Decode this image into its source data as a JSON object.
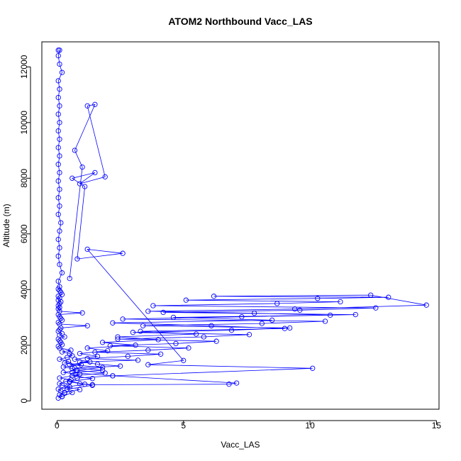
{
  "chart_data": {
    "type": "scatter",
    "title": "ATOM2 Northbound Vacc_LAS",
    "xlabel": "Vacc_LAS",
    "ylabel": "Altitude (m)",
    "xlim": [
      -0.6,
      15.1
    ],
    "ylim": [
      -300,
      12900
    ],
    "xticks": [
      0,
      5,
      10,
      15
    ],
    "xtick_labels": [
      "0",
      "5",
      "10",
      "15"
    ],
    "yticks": [
      0,
      2000,
      4000,
      6000,
      8000,
      10000,
      12000
    ],
    "ytick_labels": [
      "0",
      "2000",
      "4000",
      "6000",
      "8000",
      "10000",
      "12000"
    ],
    "grid": false,
    "legend": "none",
    "marker": "open-circle",
    "connected": true,
    "series_color": "#0000ff",
    "series": [
      {
        "x": [
          0.05,
          0.2,
          0.1,
          0.3,
          0.15,
          0.05,
          0.5,
          0.2,
          0.1,
          0.35,
          0.55,
          0.1,
          0.6,
          0.9,
          0.25,
          0.75,
          0.6,
          0.25,
          0.95,
          0.3,
          0.45,
          0.1,
          0.4,
          0.6,
          0.5,
          0.2,
          0.55,
          0.1,
          0.05,
          0.2,
          0.15,
          0.1,
          0.05,
          0.3,
          0.1,
          0.2,
          0.05,
          0.1,
          0.15,
          1.2,
          0.1,
          0.05,
          0.2,
          0.15,
          0.1,
          0.05,
          1.0,
          0.1,
          0.05,
          0.1,
          0.05,
          0.1,
          0.15,
          0.05,
          0.1,
          0.05,
          0.2,
          0.15,
          0.1,
          0.05,
          0.1,
          0.05,
          0.2,
          0.1,
          0.05,
          0.1,
          0.05,
          0.1,
          0.15,
          0.05,
          0.1,
          0.05,
          0.1,
          0.05,
          0.1,
          0.05,
          0.1,
          0.05,
          0.1,
          0.05,
          0.1,
          0.05,
          0.1,
          0.05,
          0.1,
          0.05,
          0.2,
          0.1,
          0.05,
          0.1,
          0.05
        ],
        "y": [
          100,
          160,
          220,
          280,
          350,
          420,
          500,
          560,
          620,
          700,
          760,
          820,
          900,
          960,
          1020,
          1100,
          1160,
          1220,
          1300,
          1360,
          1420,
          1500,
          1560,
          1620,
          1700,
          1760,
          1820,
          1900,
          1960,
          2020,
          2100,
          2160,
          2220,
          2300,
          2360,
          2420,
          2500,
          2560,
          2620,
          2700,
          2760,
          2820,
          2900,
          2960,
          3020,
          3100,
          3160,
          3220,
          3300,
          3360,
          3420,
          3500,
          3560,
          3620,
          3700,
          3760,
          3820,
          3900,
          3960,
          4020,
          4100,
          4300,
          4600,
          4900,
          5200,
          5500,
          5800,
          6100,
          6400,
          6700,
          7000,
          7300,
          7600,
          7900,
          8200,
          8500,
          8800,
          9100,
          9400,
          9700,
          10000,
          10300,
          10600,
          10900,
          11200,
          11500,
          11800,
          12100,
          12400,
          12600,
          12600
        ]
      },
      {
        "x": [
          0.2,
          0.6,
          0.4,
          1.4,
          0.5,
          0.8,
          2.2,
          0.6,
          1.8,
          0.7,
          2.5,
          1.6,
          0.9,
          3.2,
          1.2,
          2.8,
          4.1,
          1.5,
          3.6,
          5.2,
          2.1,
          4.7,
          6.3,
          2.4,
          5.8,
          7.6,
          3.0,
          6.9,
          9.2,
          3.4,
          8.1,
          10.6,
          2.6,
          7.3,
          11.8,
          4.2,
          9.6,
          12.6,
          3.8,
          8.7,
          11.2,
          5.1,
          10.3,
          13.1,
          6.2,
          12.4,
          14.6,
          9.4,
          3.6,
          7.8,
          10.8,
          4.6,
          8.5,
          2.2,
          6.1,
          9.0,
          3.3,
          5.5,
          2.4,
          4.0,
          1.8,
          3.1,
          1.2,
          2.0,
          0.9,
          1.6,
          0.7,
          1.3,
          0.5,
          1.8,
          0.8,
          1.9,
          0.6,
          1.4,
          0.5,
          1.1,
          0.4,
          0.9,
          0.3
        ],
        "y": [
          150,
          300,
          420,
          560,
          680,
          820,
          900,
          1020,
          1100,
          1180,
          1250,
          1320,
          1400,
          1460,
          1520,
          1600,
          1680,
          1750,
          1820,
          1900,
          1980,
          2060,
          2140,
          2220,
          2300,
          2380,
          2460,
          2540,
          2620,
          2700,
          2780,
          2860,
          2940,
          3020,
          3100,
          3180,
          3260,
          3340,
          3420,
          3500,
          3560,
          3620,
          3680,
          3720,
          3760,
          3800,
          3440,
          3300,
          3220,
          3150,
          3080,
          3000,
          2900,
          2800,
          2700,
          2600,
          2500,
          2400,
          2300,
          2200,
          2100,
          2000,
          1900,
          1800,
          1700,
          1600,
          1500,
          1400,
          1300,
          1200,
          1100,
          1000,
          900,
          800,
          700,
          600,
          500,
          400,
          300
        ]
      },
      {
        "x": [
          0.9,
          1.4,
          6.8,
          7.1,
          2.2,
          10.1,
          3.6,
          5.0,
          1.2,
          2.6,
          0.8,
          1.1,
          0.6,
          1.5,
          0.9,
          1.9,
          1.2,
          1.5,
          0.7,
          1.0,
          0.5
        ],
        "y": [
          620,
          580,
          600,
          640,
          900,
          1170,
          1300,
          1450,
          5450,
          5300,
          5100,
          7700,
          8000,
          8200,
          7800,
          8050,
          10600,
          10650,
          9000,
          8400,
          4400
        ]
      }
    ]
  }
}
